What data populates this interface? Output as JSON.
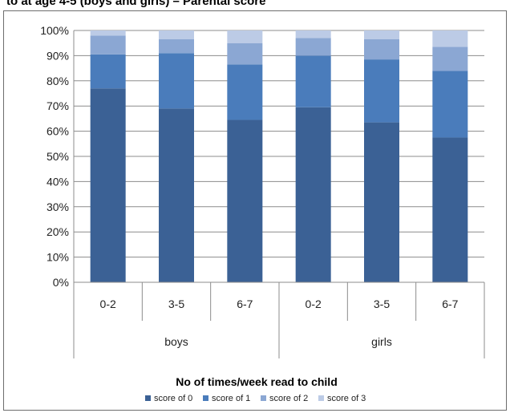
{
  "page_title": "to at age 4-5 (boys and girls) – Parental score",
  "colors": {
    "score_0": "#3b6195",
    "score_1": "#4a7cbb",
    "score_2": "#8ba7d3",
    "score_3": "#bccbe6",
    "gridline": "#8c8c8c",
    "axis": "#8c8c8c"
  },
  "chart_data": {
    "type": "bar",
    "stacked": "percent",
    "title": "",
    "xlabel": "No of times/week read to child",
    "ylabel": "",
    "ylim": [
      0,
      100
    ],
    "y_ticks": [
      "0%",
      "10%",
      "20%",
      "30%",
      "40%",
      "50%",
      "60%",
      "70%",
      "80%",
      "90%",
      "100%"
    ],
    "groups": [
      {
        "label": "boys",
        "categories": [
          "0-2",
          "3-5",
          "6-7"
        ]
      },
      {
        "label": "girls",
        "categories": [
          "0-2",
          "3-5",
          "6-7"
        ]
      }
    ],
    "categories": [
      "0-2",
      "3-5",
      "6-7",
      "0-2",
      "3-5",
      "6-7"
    ],
    "series": [
      {
        "name": "score of 0",
        "values": [
          77.0,
          69.0,
          64.5,
          69.5,
          63.5,
          57.5
        ]
      },
      {
        "name": "score of 1",
        "values": [
          13.5,
          22.0,
          22.0,
          20.5,
          25.0,
          26.5
        ]
      },
      {
        "name": "score of 2",
        "values": [
          7.5,
          5.5,
          8.5,
          7.0,
          8.0,
          9.5
        ]
      },
      {
        "name": "score of 3",
        "values": [
          2.0,
          3.5,
          5.0,
          3.0,
          3.5,
          6.5
        ]
      }
    ],
    "grid": true,
    "legend_position": "bottom"
  }
}
